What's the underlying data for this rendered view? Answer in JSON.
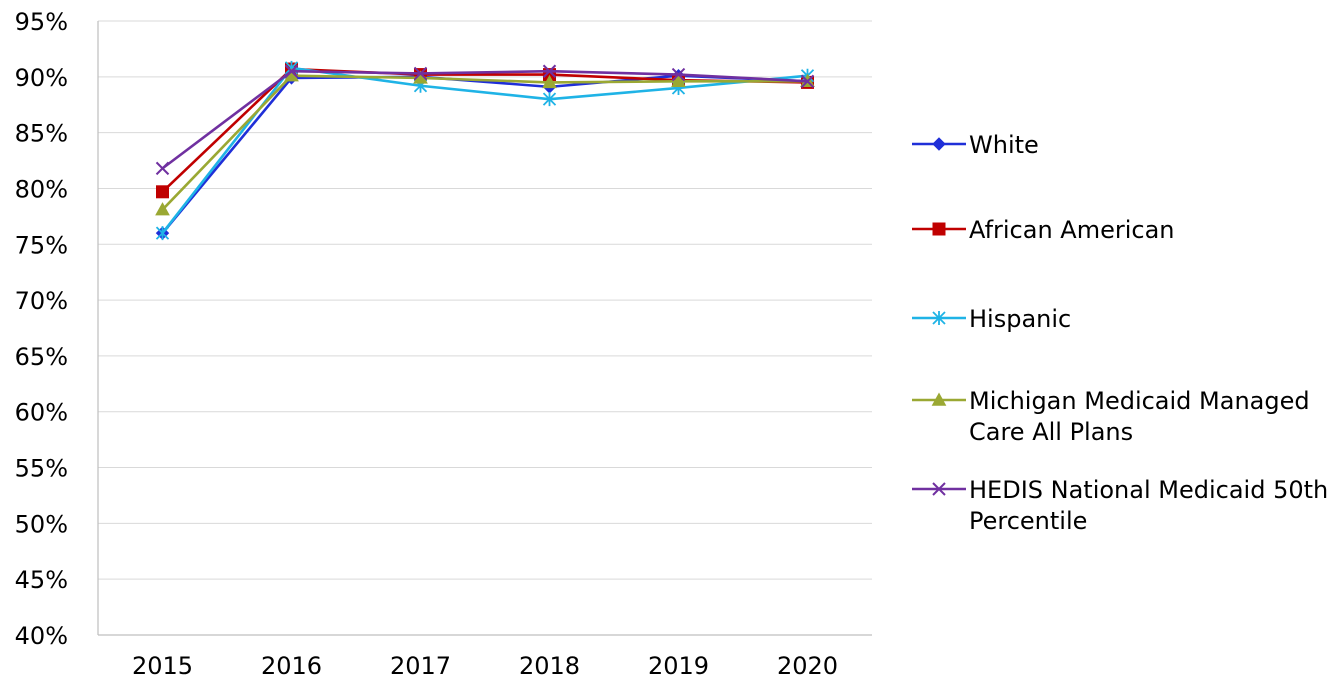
{
  "chart_data": {
    "type": "line",
    "categories": [
      "2015",
      "2016",
      "2017",
      "2018",
      "2019",
      "2020"
    ],
    "ylim": [
      40,
      95
    ],
    "yticks": [
      "95%",
      "90%",
      "85%",
      "80%",
      "75%",
      "70%",
      "65%",
      "60%",
      "55%",
      "50%",
      "45%",
      "40%"
    ],
    "grid": true,
    "legend_position": "right",
    "series": [
      {
        "name": "White",
        "color": "#1f2fd8",
        "marker": "diamond",
        "values": [
          76.0,
          89.9,
          90.0,
          89.1,
          90.1,
          89.6
        ]
      },
      {
        "name": "African American",
        "color": "#c00000",
        "marker": "square",
        "values": [
          79.7,
          90.7,
          90.2,
          90.2,
          89.7,
          89.5
        ]
      },
      {
        "name": "Hispanic",
        "color": "#1fb3e6",
        "marker": "asterisk",
        "values": [
          76.0,
          90.8,
          89.2,
          88.0,
          89.0,
          90.1
        ]
      },
      {
        "name": "Michigan Medicaid Managed Care All Plans",
        "color": "#9aa833",
        "marker": "triangle",
        "values": [
          78.1,
          90.1,
          89.9,
          89.5,
          89.6,
          89.6
        ]
      },
      {
        "name": "HEDIS National Medicaid 50th Percentile",
        "color": "#7030a0",
        "marker": "x",
        "values": [
          81.8,
          90.5,
          90.3,
          90.5,
          90.2,
          89.6
        ]
      }
    ]
  }
}
